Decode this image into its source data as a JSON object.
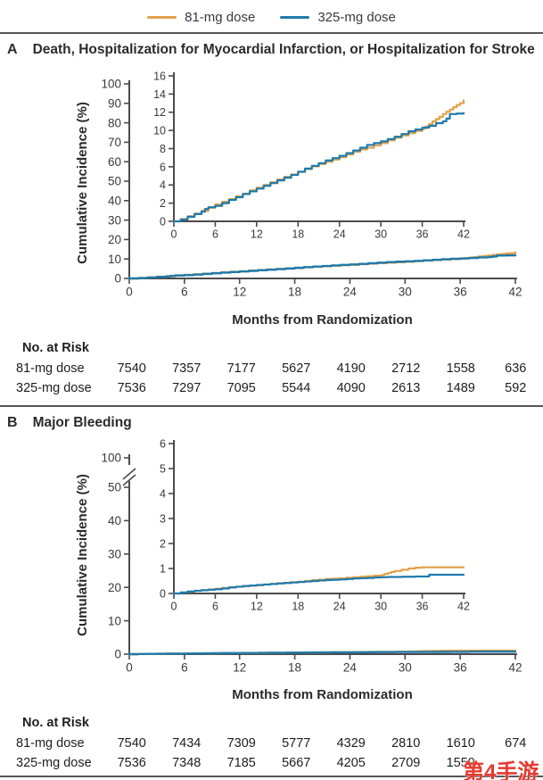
{
  "panels": [
    {
      "letter": "A",
      "risk_table": {
        "title": "No. at Risk",
        "rows": [
          {
            "label": "81-mg dose",
            "values": [
              "7540",
              "7357",
              "7177",
              "5627",
              "4190",
              "2712",
              "1558",
              "636"
            ]
          },
          {
            "label": "325-mg dose",
            "values": [
              "7536",
              "7297",
              "7095",
              "5544",
              "4090",
              "2613",
              "1489",
              "592"
            ]
          }
        ]
      }
    },
    {
      "letter": "B",
      "risk_table": {
        "title": "No. at Risk",
        "rows": [
          {
            "label": "81-mg dose",
            "values": [
              "7540",
              "7434",
              "7309",
              "5777",
              "4329",
              "2810",
              "1610",
              "674"
            ]
          },
          {
            "label": "325-mg dose",
            "values": [
              "7536",
              "7348",
              "7185",
              "5667",
              "4205",
              "2709",
              "1559",
              ""
            ]
          }
        ]
      }
    }
  ],
  "watermark": {
    "text": "第4手游",
    "color": "#E6392F"
  },
  "chart_data": [
    {
      "type": "line",
      "panel": "A",
      "title": "Death, Hospitalization for Myocardial Infarction, or Hospitalization for Stroke",
      "xlabel": "Months from Randomization",
      "ylabel": "Cumulative Incidence (%)",
      "main_axis": {
        "xlim": [
          0,
          42
        ],
        "ylim": [
          0,
          100
        ],
        "x_ticks": [
          0,
          6,
          12,
          18,
          24,
          30,
          36,
          42
        ],
        "y_ticks": [
          0,
          10,
          20,
          30,
          40,
          50,
          60,
          70,
          80,
          90,
          100
        ]
      },
      "inset_axis": {
        "xlim": [
          0,
          42
        ],
        "ylim": [
          0,
          16
        ],
        "x_ticks": [
          0,
          6,
          12,
          18,
          24,
          30,
          36,
          42
        ],
        "y_ticks": [
          0,
          2,
          4,
          6,
          8,
          10,
          12,
          14,
          16
        ]
      },
      "series": [
        {
          "name": "81-mg dose",
          "color": "#E0A24A",
          "points": [
            [
              0,
              0
            ],
            [
              1,
              0.25
            ],
            [
              2,
              0.55
            ],
            [
              3,
              0.85
            ],
            [
              4,
              1.15
            ],
            [
              5,
              1.5
            ],
            [
              6,
              1.85
            ],
            [
              7,
              2.15
            ],
            [
              8,
              2.45
            ],
            [
              9,
              2.75
            ],
            [
              10,
              3.05
            ],
            [
              11,
              3.4
            ],
            [
              12,
              3.7
            ],
            [
              13,
              4.0
            ],
            [
              14,
              4.3
            ],
            [
              15,
              4.6
            ],
            [
              16,
              4.9
            ],
            [
              17,
              5.15
            ],
            [
              18,
              5.45
            ],
            [
              19,
              5.75
            ],
            [
              20,
              6.05
            ],
            [
              21,
              6.3
            ],
            [
              22,
              6.55
            ],
            [
              23,
              6.8
            ],
            [
              24,
              7.05
            ],
            [
              25,
              7.35
            ],
            [
              26,
              7.65
            ],
            [
              27,
              7.9
            ],
            [
              28,
              8.1
            ],
            [
              29,
              8.35
            ],
            [
              30,
              8.6
            ],
            [
              31,
              8.9
            ],
            [
              32,
              9.2
            ],
            [
              33,
              9.45
            ],
            [
              34,
              9.7
            ],
            [
              35,
              9.95
            ],
            [
              36,
              10.2
            ],
            [
              36.5,
              10.45
            ],
            [
              37,
              10.7
            ],
            [
              37.5,
              11.0
            ],
            [
              38,
              11.25
            ],
            [
              38.5,
              11.5
            ],
            [
              39,
              11.8
            ],
            [
              39.5,
              12.05
            ],
            [
              40,
              12.3
            ],
            [
              40.5,
              12.55
            ],
            [
              41,
              12.8
            ],
            [
              41.5,
              13.0
            ],
            [
              42,
              13.3
            ]
          ]
        },
        {
          "name": "325-mg dose",
          "color": "#1F7AAB",
          "points": [
            [
              0,
              0
            ],
            [
              1,
              0.2
            ],
            [
              2,
              0.5
            ],
            [
              3,
              0.8
            ],
            [
              4,
              1.05
            ],
            [
              4.5,
              1.35
            ],
            [
              5,
              1.55
            ],
            [
              6,
              1.7
            ],
            [
              7,
              2.0
            ],
            [
              8,
              2.35
            ],
            [
              9,
              2.65
            ],
            [
              10,
              3.0
            ],
            [
              11,
              3.3
            ],
            [
              12,
              3.6
            ],
            [
              13,
              3.9
            ],
            [
              14,
              4.2
            ],
            [
              15,
              4.5
            ],
            [
              16,
              4.8
            ],
            [
              17,
              5.1
            ],
            [
              18,
              5.45
            ],
            [
              19,
              5.8
            ],
            [
              20,
              6.1
            ],
            [
              21,
              6.4
            ],
            [
              22,
              6.7
            ],
            [
              23,
              6.95
            ],
            [
              24,
              7.2
            ],
            [
              25,
              7.5
            ],
            [
              26,
              7.8
            ],
            [
              27,
              8.1
            ],
            [
              28,
              8.4
            ],
            [
              29,
              8.6
            ],
            [
              30,
              8.8
            ],
            [
              31,
              9.05
            ],
            [
              32,
              9.3
            ],
            [
              33,
              9.6
            ],
            [
              34,
              9.9
            ],
            [
              35,
              10.1
            ],
            [
              36,
              10.3
            ],
            [
              37,
              10.5
            ],
            [
              38,
              10.8
            ],
            [
              39,
              11.0
            ],
            [
              39.5,
              11.3
            ],
            [
              40,
              11.8
            ],
            [
              41,
              11.85
            ],
            [
              42,
              11.9
            ]
          ]
        }
      ]
    },
    {
      "type": "line",
      "panel": "B",
      "title": "Major Bleeding",
      "xlabel": "Months from Randomization",
      "ylabel": "Cumulative Incidence (%)",
      "main_axis": {
        "xlim": [
          0,
          42
        ],
        "ylim": [
          0,
          100
        ],
        "x_ticks": [
          0,
          6,
          12,
          18,
          24,
          30,
          36,
          42
        ],
        "y_ticks": [
          0,
          10,
          20,
          30,
          40,
          50,
          100
        ],
        "y_break_after": 50
      },
      "inset_axis": {
        "xlim": [
          0,
          42
        ],
        "ylim": [
          0,
          6
        ],
        "x_ticks": [
          0,
          6,
          12,
          18,
          24,
          30,
          36,
          42
        ],
        "y_ticks": [
          0,
          1,
          2,
          3,
          4,
          5,
          6
        ]
      },
      "series": [
        {
          "name": "81-mg dose",
          "color": "#E0A24A",
          "points": [
            [
              0,
              0
            ],
            [
              1,
              0.04
            ],
            [
              2,
              0.07
            ],
            [
              3,
              0.1
            ],
            [
              4,
              0.13
            ],
            [
              5,
              0.16
            ],
            [
              6,
              0.19
            ],
            [
              7,
              0.22
            ],
            [
              8,
              0.25
            ],
            [
              9,
              0.27
            ],
            [
              10,
              0.29
            ],
            [
              11,
              0.31
            ],
            [
              12,
              0.33
            ],
            [
              13,
              0.36
            ],
            [
              14,
              0.38
            ],
            [
              15,
              0.41
            ],
            [
              16,
              0.43
            ],
            [
              17,
              0.45
            ],
            [
              18,
              0.47
            ],
            [
              19,
              0.5
            ],
            [
              20,
              0.53
            ],
            [
              21,
              0.55
            ],
            [
              22,
              0.58
            ],
            [
              23,
              0.59
            ],
            [
              24,
              0.61
            ],
            [
              25,
              0.63
            ],
            [
              26,
              0.65
            ],
            [
              27,
              0.67
            ],
            [
              28,
              0.69
            ],
            [
              29,
              0.71
            ],
            [
              30,
              0.73
            ],
            [
              30.5,
              0.78
            ],
            [
              31,
              0.82
            ],
            [
              31.5,
              0.86
            ],
            [
              32,
              0.9
            ],
            [
              33,
              0.95
            ],
            [
              34,
              1.0
            ],
            [
              35,
              1.03
            ],
            [
              36,
              1.05
            ],
            [
              38,
              1.05
            ],
            [
              40,
              1.05
            ],
            [
              42,
              1.05
            ]
          ]
        },
        {
          "name": "325-mg dose",
          "color": "#1F7AAB",
          "points": [
            [
              0,
              0
            ],
            [
              1,
              0.04
            ],
            [
              2,
              0.08
            ],
            [
              3,
              0.11
            ],
            [
              4,
              0.13
            ],
            [
              5,
              0.15
            ],
            [
              6,
              0.17
            ],
            [
              7,
              0.2
            ],
            [
              8,
              0.24
            ],
            [
              9,
              0.27
            ],
            [
              10,
              0.3
            ],
            [
              11,
              0.32
            ],
            [
              12,
              0.34
            ],
            [
              13,
              0.36
            ],
            [
              14,
              0.38
            ],
            [
              15,
              0.4
            ],
            [
              16,
              0.42
            ],
            [
              17,
              0.44
            ],
            [
              18,
              0.46
            ],
            [
              19,
              0.48
            ],
            [
              20,
              0.5
            ],
            [
              21,
              0.52
            ],
            [
              22,
              0.54
            ],
            [
              23,
              0.55
            ],
            [
              24,
              0.56
            ],
            [
              25,
              0.58
            ],
            [
              26,
              0.6
            ],
            [
              27,
              0.61
            ],
            [
              28,
              0.62
            ],
            [
              29,
              0.64
            ],
            [
              30,
              0.65
            ],
            [
              31,
              0.66
            ],
            [
              32,
              0.66
            ],
            [
              33,
              0.67
            ],
            [
              34,
              0.67
            ],
            [
              35,
              0.68
            ],
            [
              36,
              0.68
            ],
            [
              37,
              0.75
            ],
            [
              39,
              0.75
            ],
            [
              42,
              0.75
            ]
          ]
        }
      ]
    }
  ]
}
